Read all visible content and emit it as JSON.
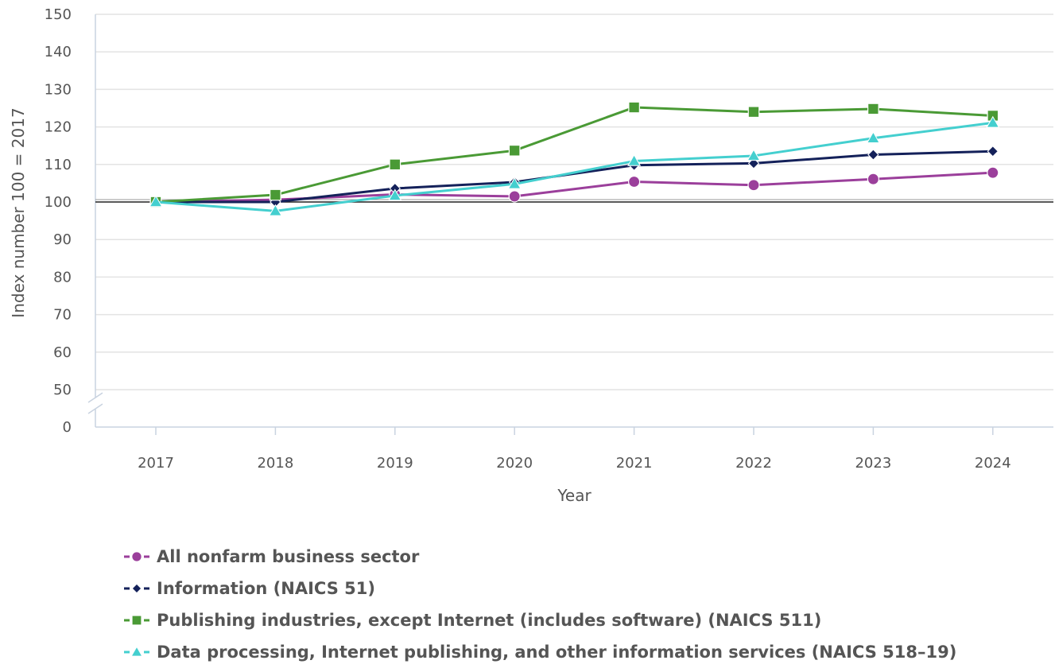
{
  "chart_data": {
    "type": "line",
    "title": "",
    "xlabel": "Year",
    "ylabel": "Index number 100 = 2017",
    "categories": [
      "2017",
      "2018",
      "2019",
      "2020",
      "2021",
      "2022",
      "2023",
      "2024"
    ],
    "y_ticks": [
      "0",
      "50",
      "60",
      "70",
      "80",
      "90",
      "100",
      "110",
      "120",
      "130",
      "140",
      "150"
    ],
    "ylim": [
      0,
      150
    ],
    "y_axis_break": [
      0,
      50
    ],
    "reference_line": 100,
    "grid": "horizontal",
    "legend_position": "bottom",
    "series": [
      {
        "name": "All nonfarm business sector",
        "marker": "circle",
        "color": "#9b3f9b",
        "values": [
          100.0,
          100.6,
          102.0,
          101.5,
          105.4,
          104.5,
          106.1,
          107.8
        ]
      },
      {
        "name": "Information (NAICS 51)",
        "marker": "diamond",
        "color": "#14215a",
        "values": [
          100.0,
          100.0,
          103.6,
          105.3,
          109.8,
          110.3,
          112.6,
          113.5
        ]
      },
      {
        "name": "Publishing industries, except Internet (includes software) (NAICS 511)",
        "marker": "square",
        "color": "#4a9a35",
        "values": [
          100.0,
          101.9,
          110.0,
          113.7,
          125.2,
          124.0,
          124.8,
          123.0
        ]
      },
      {
        "name": "Data processing, Internet publishing, and other information services (NAICS 518–19)",
        "marker": "triangle",
        "color": "#44cfcf",
        "values": [
          100.0,
          97.6,
          101.7,
          104.8,
          110.9,
          112.3,
          117.0,
          121.1
        ]
      }
    ]
  }
}
